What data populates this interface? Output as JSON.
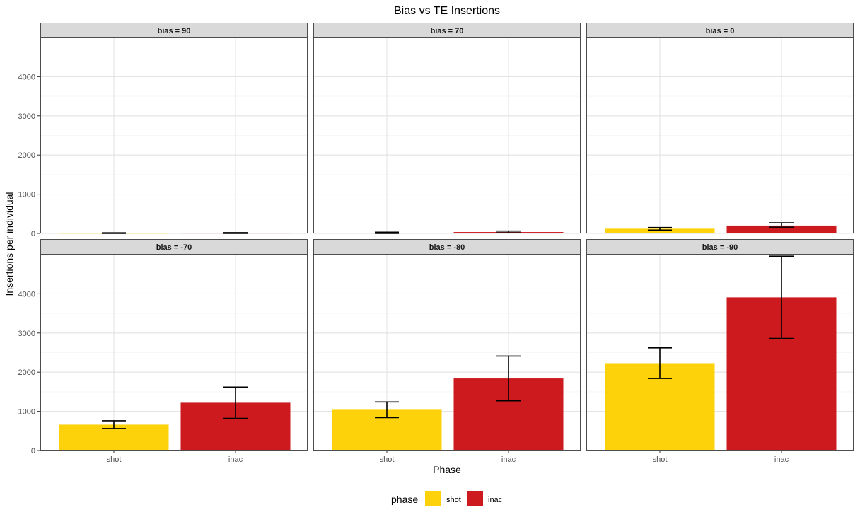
{
  "chart_data": {
    "type": "bar",
    "title": "Bias vs TE Insertions",
    "xlabel": "Phase",
    "ylabel": "Insertions per individual",
    "categories": [
      "shot",
      "inac"
    ],
    "yticks": [
      0,
      1000,
      2000,
      3000,
      4000
    ],
    "ylim": [
      0,
      5000
    ],
    "grid": true,
    "colors": {
      "shot": "#FDD20A",
      "inac": "#CC1A1F"
    },
    "legend": {
      "title": "phase",
      "position": "bottom",
      "entries": [
        "shot",
        "inac"
      ]
    },
    "panels": [
      {
        "label": "bias = 90",
        "values": [
          5,
          8
        ],
        "error_low": [
          0,
          0
        ],
        "error_high": [
          15,
          20
        ]
      },
      {
        "label": "bias = 70",
        "values": [
          10,
          35
        ],
        "error_low": [
          0,
          15
        ],
        "error_high": [
          30,
          60
        ]
      },
      {
        "label": "bias = 0",
        "values": [
          120,
          200
        ],
        "error_low": [
          85,
          160
        ],
        "error_high": [
          150,
          270
        ]
      },
      {
        "label": "bias = -70",
        "values": [
          660,
          1220
        ],
        "error_low": [
          560,
          820
        ],
        "error_high": [
          760,
          1620
        ]
      },
      {
        "label": "bias = -80",
        "values": [
          1040,
          1840
        ],
        "error_low": [
          840,
          1270
        ],
        "error_high": [
          1240,
          2410
        ]
      },
      {
        "label": "bias = -90",
        "values": [
          2230,
          3910
        ],
        "error_low": [
          1840,
          2860
        ],
        "error_high": [
          2620,
          4960
        ]
      }
    ]
  }
}
